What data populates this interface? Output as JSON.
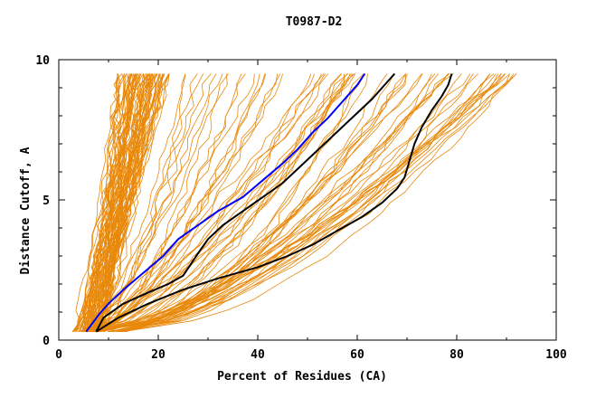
{
  "chart_data": {
    "type": "line",
    "title": "T0987-D2",
    "xlabel": "Percent of Residues (CA)",
    "ylabel": "Distance Cutoff, A",
    "xlim": [
      0,
      100
    ],
    "ylim": [
      0,
      10
    ],
    "x_ticks": [
      "0",
      "20",
      "40",
      "60",
      "80",
      "100"
    ],
    "y_ticks": [
      "0",
      "5",
      "10"
    ],
    "grid": false,
    "colors": {
      "background_curves": "#e8890c",
      "highlight_1": "#000000",
      "highlight_2": "#000000",
      "highlight_3": "#0000ff"
    },
    "background_curves_count": 150,
    "series": [
      {
        "color": "#000000",
        "x": [
          7.5,
          9,
          13,
          18,
          22,
          25,
          26.5,
          28,
          30,
          33,
          37,
          41,
          45,
          48,
          51,
          54,
          57,
          60,
          63,
          65,
          67.5
        ],
        "y": [
          0.3,
          0.8,
          1.3,
          1.7,
          2.0,
          2.3,
          2.7,
          3.1,
          3.6,
          4.1,
          4.6,
          5.1,
          5.6,
          6.1,
          6.6,
          7.1,
          7.6,
          8.1,
          8.6,
          9.0,
          9.5
        ]
      },
      {
        "color": "#000000",
        "x": [
          7.5,
          12,
          18,
          25,
          32,
          40,
          46,
          51,
          56,
          61,
          65,
          68,
          69.5,
          70.5,
          71.5,
          73,
          75,
          77,
          78.3,
          79
        ],
        "y": [
          0.3,
          0.8,
          1.3,
          1.8,
          2.2,
          2.6,
          3.0,
          3.4,
          3.9,
          4.4,
          4.9,
          5.4,
          5.8,
          6.4,
          7.0,
          7.6,
          8.2,
          8.7,
          9.1,
          9.5
        ]
      },
      {
        "color": "#0000ff",
        "x": [
          5.5,
          8,
          10,
          13,
          17,
          21,
          24,
          28,
          32,
          37,
          41,
          45,
          48,
          51,
          54,
          57,
          60,
          61.5
        ],
        "y": [
          0.3,
          0.9,
          1.3,
          1.8,
          2.4,
          3.0,
          3.6,
          4.1,
          4.6,
          5.1,
          5.7,
          6.3,
          6.8,
          7.4,
          7.9,
          8.5,
          9.1,
          9.5
        ]
      }
    ]
  }
}
